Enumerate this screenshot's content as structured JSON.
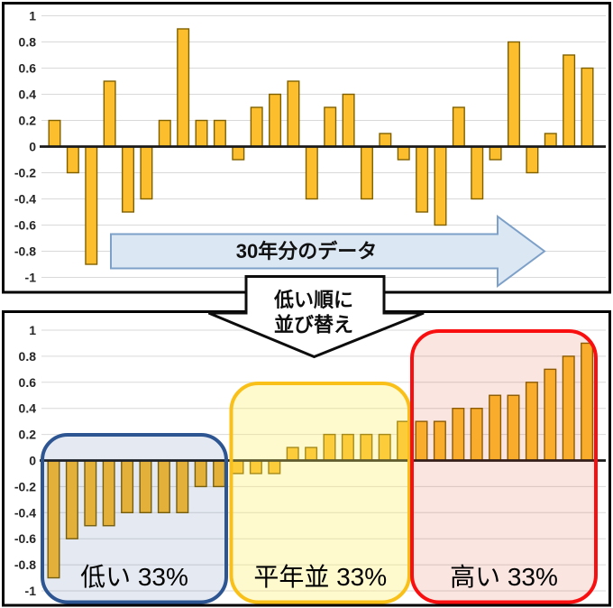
{
  "connector": {
    "line1": "低い順に",
    "line2": "並び替え"
  },
  "colors": {
    "grid": "#D9D9D9",
    "zero_axis": "#1A1A1A",
    "tick_text": "#262626",
    "panel_border": "#000000",
    "bar_fill": "#FDBE2D",
    "bar_border": "#7F6000"
  },
  "chart_data": [
    {
      "type": "bar",
      "name": "raw-30-years",
      "values": [
        0.2,
        -0.2,
        -0.9,
        0.5,
        -0.5,
        -0.4,
        0.2,
        0.9,
        0.2,
        0.2,
        -0.1,
        0.3,
        0.4,
        0.5,
        -0.4,
        0.3,
        0.4,
        -0.4,
        0.1,
        -0.1,
        -0.5,
        -0.6,
        0.3,
        -0.4,
        -0.1,
        0.8,
        -0.2,
        0.1,
        0.7,
        0.6
      ],
      "ylim": [
        -1,
        1
      ],
      "ytick_labels": [
        "1",
        "0.8",
        "0.6",
        "0.4",
        "0.2",
        "0",
        "-0.2",
        "-0.4",
        "-0.6",
        "-0.8",
        "-1"
      ],
      "grid": true,
      "legend": "none",
      "bar_color": "#FDBE2D",
      "bar_border": "#7F6000",
      "annotation": {
        "label": "30年分のデータ",
        "shape": "right-arrow",
        "fill": "#DBE7F3",
        "stroke": "#7DA0C8"
      }
    },
    {
      "type": "bar",
      "name": "sorted-ascending",
      "values": [
        -0.9,
        -0.6,
        -0.5,
        -0.5,
        -0.4,
        -0.4,
        -0.4,
        -0.4,
        -0.2,
        -0.2,
        -0.1,
        -0.1,
        -0.1,
        0.1,
        0.1,
        0.2,
        0.2,
        0.2,
        0.2,
        0.3,
        0.3,
        0.3,
        0.4,
        0.4,
        0.5,
        0.5,
        0.6,
        0.7,
        0.8,
        0.9
      ],
      "ylim": [
        -1,
        1
      ],
      "ytick_labels": [
        "1",
        "0.8",
        "0.6",
        "0.4",
        "0.2",
        "0",
        "-0.2",
        "-0.4",
        "-0.6",
        "-0.8",
        "-1"
      ],
      "grid": true,
      "legend": "none",
      "bar_color": "#FDBE2D",
      "bar_border": "#7F6000",
      "groups": [
        {
          "label": "低い 33%",
          "start_index": 0,
          "end_index": 9,
          "border_color": "#2D5591",
          "fill_color": "rgba(45,85,150,0.12)"
        },
        {
          "label": "平年並 33%",
          "start_index": 10,
          "end_index": 19,
          "border_color": "#FAC01A",
          "fill_color": "rgba(255,238,90,0.30)"
        },
        {
          "label": "高い 33%",
          "start_index": 20,
          "end_index": 29,
          "border_color": "#F90F0F",
          "fill_color": "rgba(225,60,30,0.135)"
        }
      ]
    }
  ]
}
